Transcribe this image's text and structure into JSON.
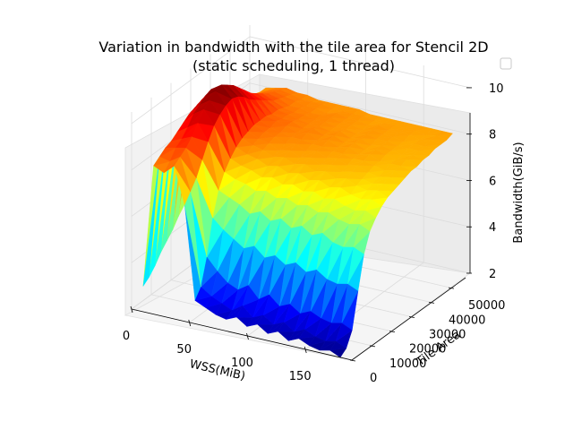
{
  "chart_data": {
    "type": "surface3d",
    "title_line1": "Variation in bandwidth with the tile area for Stencil 2D",
    "title_line2": "(static scheduling, 1 thread)",
    "xlabel": "WSS(MiB)",
    "ylabel": "Tile Area",
    "zlabel": "Bandwidth(GiB/s)",
    "x_ticks": [
      "0",
      "50",
      "100",
      "150"
    ],
    "y_ticks": [
      "0",
      "10000",
      "20000",
      "30000",
      "40000",
      "50000"
    ],
    "z_ticks": [
      "2",
      "4",
      "6",
      "8",
      "10"
    ],
    "xlim": [
      0,
      190
    ],
    "ylim": [
      0,
      60000
    ],
    "zlim": [
      2,
      10.5
    ],
    "colormap": "jet",
    "legend": "empty box at top-right",
    "grid": true,
    "surface_rows": [
      {
        "tile_area": 0,
        "bandwidth": [
          3.1,
          8.4,
          8.2,
          8.6,
          7.0,
          3.0,
          2.8,
          2.6,
          2.5,
          2.7,
          2.4,
          2.6,
          2.3,
          2.5,
          2.2,
          2.4,
          2.2,
          2.1,
          2.2,
          2.0
        ]
      },
      {
        "tile_area": 3000,
        "bandwidth": [
          3.3,
          8.6,
          8.5,
          8.8,
          7.4,
          3.4,
          3.1,
          2.9,
          2.7,
          3.0,
          2.6,
          2.8,
          2.5,
          2.7,
          2.4,
          2.6,
          2.4,
          2.3,
          2.4,
          2.2
        ]
      },
      {
        "tile_area": 6000,
        "bandwidth": [
          3.6,
          8.8,
          8.9,
          9.0,
          7.8,
          4.5,
          4.0,
          3.6,
          3.4,
          3.7,
          3.2,
          3.5,
          3.1,
          3.3,
          3.0,
          3.2,
          3.0,
          2.9,
          3.0,
          2.8
        ]
      },
      {
        "tile_area": 9000,
        "bandwidth": [
          4.0,
          8.9,
          9.1,
          9.3,
          8.4,
          6.0,
          5.6,
          5.3,
          5.0,
          5.2,
          4.8,
          5.0,
          4.7,
          4.9,
          4.6,
          4.8,
          4.5,
          4.4,
          4.5,
          4.3
        ]
      },
      {
        "tile_area": 12000,
        "bandwidth": [
          4.3,
          9.1,
          9.4,
          9.7,
          9.0,
          7.0,
          6.8,
          6.6,
          6.3,
          6.5,
          6.2,
          6.4,
          6.1,
          6.3,
          6.0,
          6.2,
          5.9,
          5.8,
          5.9,
          5.7
        ]
      },
      {
        "tile_area": 15000,
        "bandwidth": [
          4.6,
          9.3,
          9.8,
          10.1,
          9.5,
          7.6,
          7.4,
          7.3,
          7.1,
          7.2,
          7.0,
          7.1,
          6.9,
          7.0,
          6.8,
          6.9,
          6.7,
          6.6,
          6.7,
          6.5
        ]
      },
      {
        "tile_area": 18000,
        "bandwidth": [
          5.0,
          9.5,
          10.0,
          10.3,
          9.8,
          8.0,
          7.8,
          7.7,
          7.5,
          7.6,
          7.4,
          7.5,
          7.3,
          7.4,
          7.2,
          7.3,
          7.1,
          7.0,
          7.1,
          6.9
        ]
      },
      {
        "tile_area": 21000,
        "bandwidth": [
          5.3,
          9.6,
          10.2,
          10.5,
          10.0,
          8.3,
          8.1,
          8.0,
          7.8,
          7.9,
          7.7,
          7.8,
          7.6,
          7.7,
          7.5,
          7.6,
          7.4,
          7.3,
          7.4,
          7.2
        ]
      },
      {
        "tile_area": 24000,
        "bandwidth": [
          5.6,
          9.7,
          10.3,
          10.6,
          10.1,
          8.5,
          8.3,
          8.2,
          8.0,
          8.1,
          7.9,
          8.0,
          7.8,
          7.9,
          7.7,
          7.8,
          7.6,
          7.5,
          7.6,
          7.4
        ]
      },
      {
        "tile_area": 27000,
        "bandwidth": [
          5.8,
          9.6,
          10.2,
          10.4,
          10.0,
          8.6,
          8.4,
          8.3,
          8.1,
          8.2,
          8.0,
          8.1,
          7.9,
          8.0,
          7.8,
          7.9,
          7.7,
          7.6,
          7.7,
          7.5
        ]
      },
      {
        "tile_area": 30000,
        "bandwidth": [
          6.0,
          9.4,
          10.0,
          10.2,
          9.8,
          8.7,
          8.5,
          8.4,
          8.2,
          8.3,
          8.1,
          8.2,
          8.0,
          8.1,
          7.9,
          8.0,
          7.8,
          7.7,
          7.8,
          7.6
        ]
      },
      {
        "tile_area": 33000,
        "bandwidth": [
          6.2,
          9.2,
          9.7,
          9.9,
          9.5,
          8.7,
          8.5,
          8.4,
          8.3,
          8.3,
          8.2,
          8.2,
          8.1,
          8.1,
          8.0,
          8.0,
          7.9,
          7.8,
          7.9,
          7.7
        ]
      },
      {
        "tile_area": 36000,
        "bandwidth": [
          6.3,
          9.0,
          9.4,
          9.6,
          9.3,
          8.7,
          8.6,
          8.5,
          8.3,
          8.4,
          8.2,
          8.3,
          8.1,
          8.2,
          8.0,
          8.1,
          7.9,
          7.9,
          7.9,
          7.8
        ]
      },
      {
        "tile_area": 39000,
        "bandwidth": [
          6.4,
          8.8,
          9.2,
          9.3,
          9.1,
          8.6,
          8.5,
          8.5,
          8.3,
          8.4,
          8.2,
          8.3,
          8.1,
          8.2,
          8.0,
          8.1,
          8.0,
          7.9,
          8.0,
          7.8
        ]
      },
      {
        "tile_area": 42000,
        "bandwidth": [
          6.5,
          8.6,
          9.0,
          9.1,
          8.9,
          8.6,
          8.5,
          8.4,
          8.3,
          8.3,
          8.2,
          8.3,
          8.1,
          8.2,
          8.0,
          8.1,
          8.0,
          7.9,
          8.0,
          7.9
        ]
      },
      {
        "tile_area": 45000,
        "bandwidth": [
          6.6,
          8.5,
          8.8,
          8.9,
          8.7,
          8.5,
          8.4,
          8.4,
          8.3,
          8.3,
          8.2,
          8.2,
          8.1,
          8.2,
          8.1,
          8.1,
          8.0,
          8.0,
          8.0,
          7.9
        ]
      },
      {
        "tile_area": 48000,
        "bandwidth": [
          6.7,
          8.4,
          8.6,
          8.7,
          8.6,
          8.4,
          8.4,
          8.3,
          8.3,
          8.3,
          8.2,
          8.2,
          8.1,
          8.2,
          8.1,
          8.1,
          8.0,
          8.0,
          8.0,
          8.0
        ]
      },
      {
        "tile_area": 51000,
        "bandwidth": [
          6.8,
          8.3,
          8.5,
          8.6,
          8.5,
          8.4,
          8.3,
          8.3,
          8.2,
          8.3,
          8.2,
          8.2,
          8.1,
          8.2,
          8.1,
          8.1,
          8.1,
          8.0,
          8.1,
          8.0
        ]
      },
      {
        "tile_area": 54000,
        "bandwidth": [
          6.9,
          8.2,
          8.4,
          8.5,
          8.4,
          8.3,
          8.3,
          8.3,
          8.2,
          8.2,
          8.2,
          8.2,
          8.1,
          8.1,
          8.1,
          8.1,
          8.1,
          8.0,
          8.1,
          8.0
        ]
      },
      {
        "tile_area": 57000,
        "bandwidth": [
          7.0,
          8.2,
          8.3,
          8.4,
          8.3,
          8.3,
          8.2,
          8.2,
          8.2,
          8.2,
          8.2,
          8.1,
          8.1,
          8.1,
          8.1,
          8.1,
          8.1,
          8.1,
          8.1,
          8.1
        ]
      }
    ]
  }
}
